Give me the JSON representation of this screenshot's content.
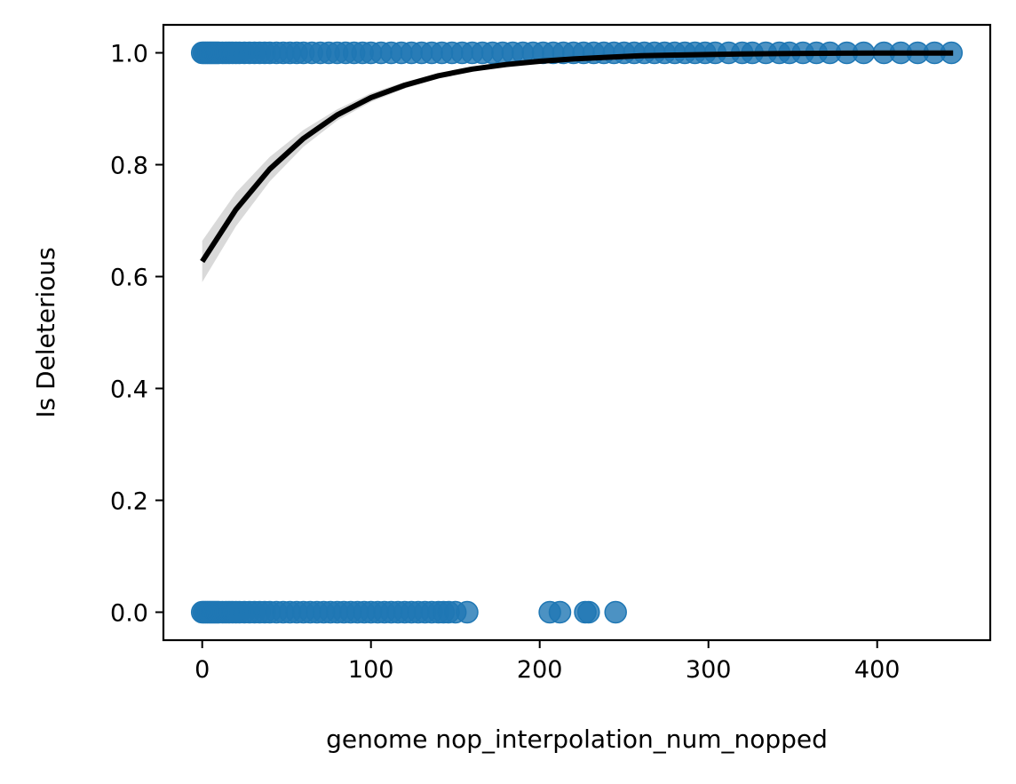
{
  "chart_data": {
    "type": "scatter",
    "title": "",
    "xlabel": "genome nop_interpolation_num_nopped",
    "ylabel": "Is Deleterious",
    "xlim": [
      -23,
      467
    ],
    "ylim": [
      -0.05,
      1.05
    ],
    "x_ticks": [
      0,
      100,
      200,
      300,
      400
    ],
    "x_tick_labels": [
      "0",
      "100",
      "200",
      "300",
      "400"
    ],
    "y_ticks": [
      0.0,
      0.2,
      0.4,
      0.6,
      0.8,
      1.0
    ],
    "y_tick_labels": [
      "0.0",
      "0.2",
      "0.4",
      "0.6",
      "0.8",
      "1.0"
    ],
    "grid": false,
    "point_color": "#1f77b4",
    "fit_color": "#000000",
    "ci_color": "#cccccc",
    "series": [
      {
        "y": 1,
        "x": [
          0,
          1,
          2,
          3,
          4,
          5,
          6,
          7,
          8,
          9,
          10,
          12,
          14,
          16,
          18,
          20,
          22,
          25,
          28,
          31,
          34,
          37,
          40,
          44,
          48,
          52,
          56,
          60,
          65,
          70,
          75,
          80,
          85,
          90,
          95,
          100,
          106,
          112,
          118,
          124,
          130,
          136,
          142,
          148,
          154,
          160,
          166,
          172,
          178,
          184,
          190,
          196,
          202,
          208,
          214,
          220,
          226,
          232,
          238,
          244,
          250,
          256,
          262,
          268,
          274,
          280,
          286,
          292,
          298,
          304,
          312,
          320,
          326,
          334,
          342,
          348,
          356,
          364,
          372,
          382,
          392,
          404,
          414,
          424,
          434,
          444
        ]
      },
      {
        "y": 0,
        "x": [
          0,
          1,
          2,
          3,
          4,
          5,
          6,
          7,
          8,
          9,
          10,
          12,
          14,
          16,
          18,
          20,
          22,
          25,
          28,
          31,
          34,
          37,
          40,
          44,
          48,
          52,
          56,
          60,
          64,
          68,
          72,
          76,
          80,
          84,
          88,
          92,
          96,
          100,
          104,
          108,
          112,
          116,
          120,
          124,
          128,
          132,
          136,
          140,
          143,
          146,
          150,
          157,
          206,
          212,
          227,
          229,
          245
        ]
      }
    ],
    "fit": {
      "x": [
        0,
        20,
        40,
        60,
        80,
        100,
        120,
        140,
        160,
        180,
        200,
        220,
        240,
        260,
        280,
        300,
        320,
        340,
        360,
        380,
        400,
        420,
        445
      ],
      "y": [
        0.627,
        0.72,
        0.792,
        0.847,
        0.889,
        0.92,
        0.942,
        0.959,
        0.971,
        0.979,
        0.985,
        0.989,
        0.992,
        0.995,
        0.996,
        0.997,
        0.998,
        0.9986,
        0.999,
        0.9993,
        0.9995,
        0.9996,
        0.9997
      ],
      "ci_lower": [
        0.59,
        0.69,
        0.77,
        0.832,
        0.879,
        0.912,
        0.936,
        0.954,
        0.966,
        0.975,
        0.982,
        0.987,
        0.99,
        0.993,
        0.995,
        0.996,
        0.997,
        0.998,
        0.9986,
        0.999,
        0.9993,
        0.9994,
        0.9995
      ],
      "ci_upper": [
        0.664,
        0.75,
        0.814,
        0.862,
        0.899,
        0.928,
        0.948,
        0.963,
        0.975,
        0.983,
        0.988,
        0.992,
        0.994,
        0.996,
        0.997,
        0.998,
        0.9988,
        0.9992,
        0.9994,
        0.9996,
        0.9997,
        0.9998,
        0.9999
      ]
    }
  }
}
